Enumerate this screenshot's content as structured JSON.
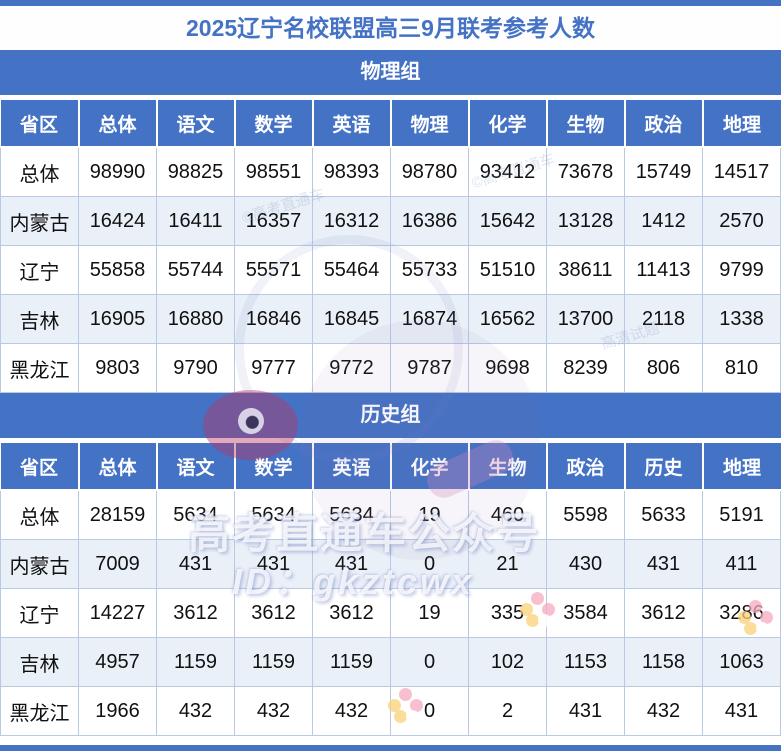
{
  "title": "2025辽宁名校联盟高三9月联考参考人数",
  "colors": {
    "primary_blue": "#4472C4",
    "alt_row": "#EAF0F8",
    "cell_border": "#B9C9E4",
    "title_text": "#4472C4"
  },
  "chart_data": [
    {
      "type": "table",
      "group_label": "物理组",
      "columns": [
        "省区",
        "总体",
        "语文",
        "数学",
        "英语",
        "物理",
        "化学",
        "生物",
        "政治",
        "地理"
      ],
      "rows": [
        {
          "label": "总体",
          "values": [
            "98990",
            "98825",
            "98551",
            "98393",
            "98780",
            "93412",
            "73678",
            "15749",
            "14517"
          ]
        },
        {
          "label": "内蒙古",
          "values": [
            "16424",
            "16411",
            "16357",
            "16312",
            "16386",
            "15642",
            "13128",
            "1412",
            "2570"
          ]
        },
        {
          "label": "辽宁",
          "values": [
            "55858",
            "55744",
            "55571",
            "55464",
            "55733",
            "51510",
            "38611",
            "11413",
            "9799"
          ]
        },
        {
          "label": "吉林",
          "values": [
            "16905",
            "16880",
            "16846",
            "16845",
            "16874",
            "16562",
            "13700",
            "2118",
            "1338"
          ]
        },
        {
          "label": "黑龙江",
          "values": [
            "9803",
            "9790",
            "9777",
            "9772",
            "9787",
            "9698",
            "8239",
            "806",
            "810"
          ]
        }
      ]
    },
    {
      "type": "table",
      "group_label": "历史组",
      "columns": [
        "省区",
        "总体",
        "语文",
        "数学",
        "英语",
        "化学",
        "生物",
        "政治",
        "历史",
        "地理"
      ],
      "rows": [
        {
          "label": "总体",
          "values": [
            "28159",
            "5634",
            "5634",
            "5634",
            "19",
            "460",
            "5598",
            "5633",
            "5191"
          ]
        },
        {
          "label": "内蒙古",
          "values": [
            "7009",
            "431",
            "431",
            "431",
            "0",
            "21",
            "430",
            "431",
            "411"
          ]
        },
        {
          "label": "辽宁",
          "values": [
            "14227",
            "3612",
            "3612",
            "3612",
            "19",
            "335",
            "3584",
            "3612",
            "3286"
          ]
        },
        {
          "label": "吉林",
          "values": [
            "4957",
            "1159",
            "1159",
            "1159",
            "0",
            "102",
            "1153",
            "1158",
            "1063"
          ]
        },
        {
          "label": "黑龙江",
          "values": [
            "1966",
            "432",
            "432",
            "432",
            "0",
            "2",
            "431",
            "432",
            "431"
          ]
        }
      ]
    }
  ],
  "watermark": {
    "line1": "高考直通车公众号",
    "line2": "ID：gkztcwx",
    "diagonal": [
      "©高考直通车",
      "高清试题",
      "©高考直通车"
    ]
  }
}
